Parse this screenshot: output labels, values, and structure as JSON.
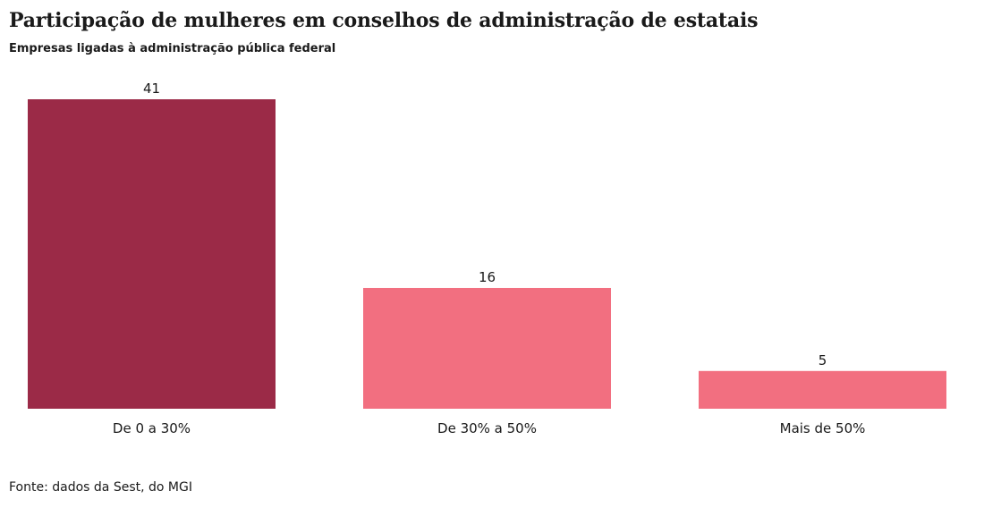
{
  "header": {
    "title": "Participação de mulheres em conselhos de administração de estatais",
    "subtitle": "Empresas ligadas à administração pública federal"
  },
  "footer": {
    "source": "Fonte: dados da Sest, do MGI"
  },
  "chart_data": {
    "type": "bar",
    "title": "Participação de mulheres em conselhos de administração de estatais",
    "subtitle": "Empresas ligadas à administração pública federal",
    "categories": [
      "De 0 a 30%",
      "De 30% a 50%",
      "Mais de 50%"
    ],
    "values": [
      41,
      16,
      5
    ],
    "colors": [
      "#9b2a47",
      "#f26f80",
      "#f26f80"
    ],
    "xlabel": "",
    "ylabel": "",
    "ylim": [
      0,
      41
    ],
    "grid": false,
    "legend": "none",
    "data_labels": true
  }
}
